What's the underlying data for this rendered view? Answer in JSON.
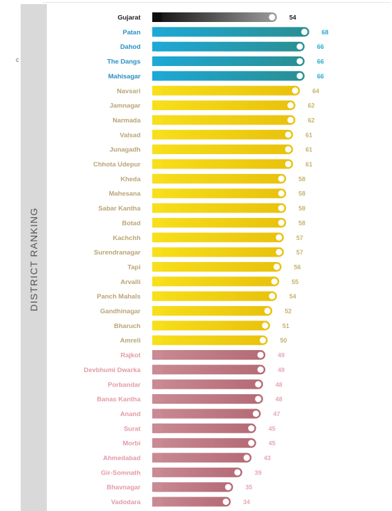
{
  "side_title": "DISTRICT RANKING",
  "left_mark": "c",
  "colors": {
    "state": "#333333",
    "top": "#1f9fc1",
    "middle": "#f2cc0c",
    "bottom": "#c47c86"
  },
  "chart_data": {
    "type": "bar",
    "orientation": "horizontal",
    "categories": [
      "Gujarat",
      "Patan",
      "Dahod",
      "The Dangs",
      "Mahisagar",
      "Navsari",
      "Jamnagar",
      "Narmada",
      "Valsad",
      "Junagadh",
      "Chhota Udepur",
      "Kheda",
      "Mahesana",
      "Sabar Kantha",
      "Botad",
      "Kachchh",
      "Surendranagar",
      "Tapi",
      "Arvalli",
      "Panch Mahals",
      "Gandhinagar",
      "Bharuch",
      "Amreli",
      "Rajkot",
      "Devbhumi Dwarka",
      "Porbandar",
      "Banas Kantha",
      "Anand",
      "Surat",
      "Morbi",
      "Ahmedabad",
      "Gir-Somnath",
      "Bhavnagar",
      "Vadodara"
    ],
    "values": [
      54,
      68,
      66,
      66,
      66,
      64,
      62,
      62,
      61,
      61,
      61,
      58,
      58,
      58,
      58,
      57,
      57,
      56,
      55,
      54,
      52,
      51,
      50,
      49,
      49,
      48,
      48,
      47,
      45,
      45,
      43,
      39,
      35,
      34
    ],
    "groups": [
      "state",
      "top",
      "top",
      "top",
      "top",
      "middle",
      "middle",
      "middle",
      "middle",
      "middle",
      "middle",
      "middle",
      "middle",
      "middle",
      "middle",
      "middle",
      "middle",
      "middle",
      "middle",
      "middle",
      "middle",
      "middle",
      "middle",
      "bottom",
      "bottom",
      "bottom",
      "bottom",
      "bottom",
      "bottom",
      "bottom",
      "bottom",
      "bottom",
      "bottom",
      "bottom"
    ],
    "xlim": [
      0,
      70
    ],
    "grid": false,
    "legend": "none"
  }
}
